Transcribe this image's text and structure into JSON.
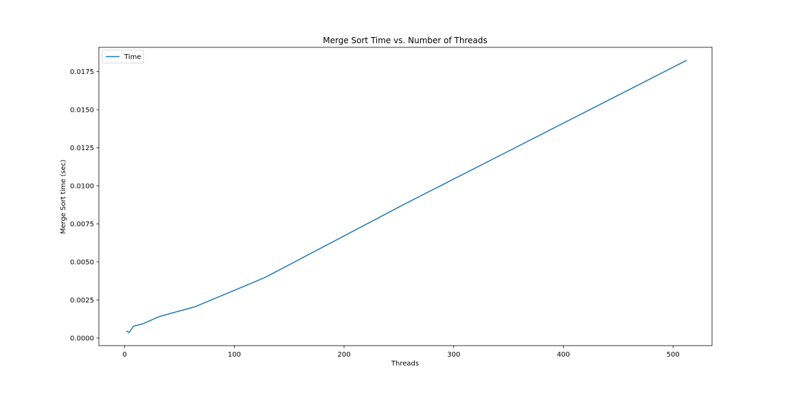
{
  "chart_data": {
    "type": "line",
    "title": "Merge Sort Time vs. Number of Threads",
    "xlabel": "Threads",
    "ylabel": "Merge Sort time (sec)",
    "xlim": [
      -23.55,
      535.55
    ],
    "ylim": [
      -0.0005,
      0.0191
    ],
    "xticks": [
      0,
      100,
      200,
      300,
      400,
      500
    ],
    "xtick_labels": [
      "0",
      "100",
      "200",
      "300",
      "400",
      "500"
    ],
    "yticks": [
      0.0,
      0.0025,
      0.005,
      0.0075,
      0.01,
      0.0125,
      0.015,
      0.0175
    ],
    "ytick_labels": [
      "0.0000",
      "0.0025",
      "0.0050",
      "0.0075",
      "0.0100",
      "0.0125",
      "0.0150",
      "0.0175"
    ],
    "grid": false,
    "legend": "upper-left",
    "series": [
      {
        "name": "Time",
        "color": "#1f77b4",
        "x": [
          2,
          4,
          8,
          16,
          32,
          64,
          128,
          256,
          512
        ],
        "y": [
          0.00045,
          0.00035,
          0.00078,
          0.00092,
          0.00142,
          0.00205,
          0.00398,
          0.00883,
          0.01823
        ]
      }
    ]
  }
}
